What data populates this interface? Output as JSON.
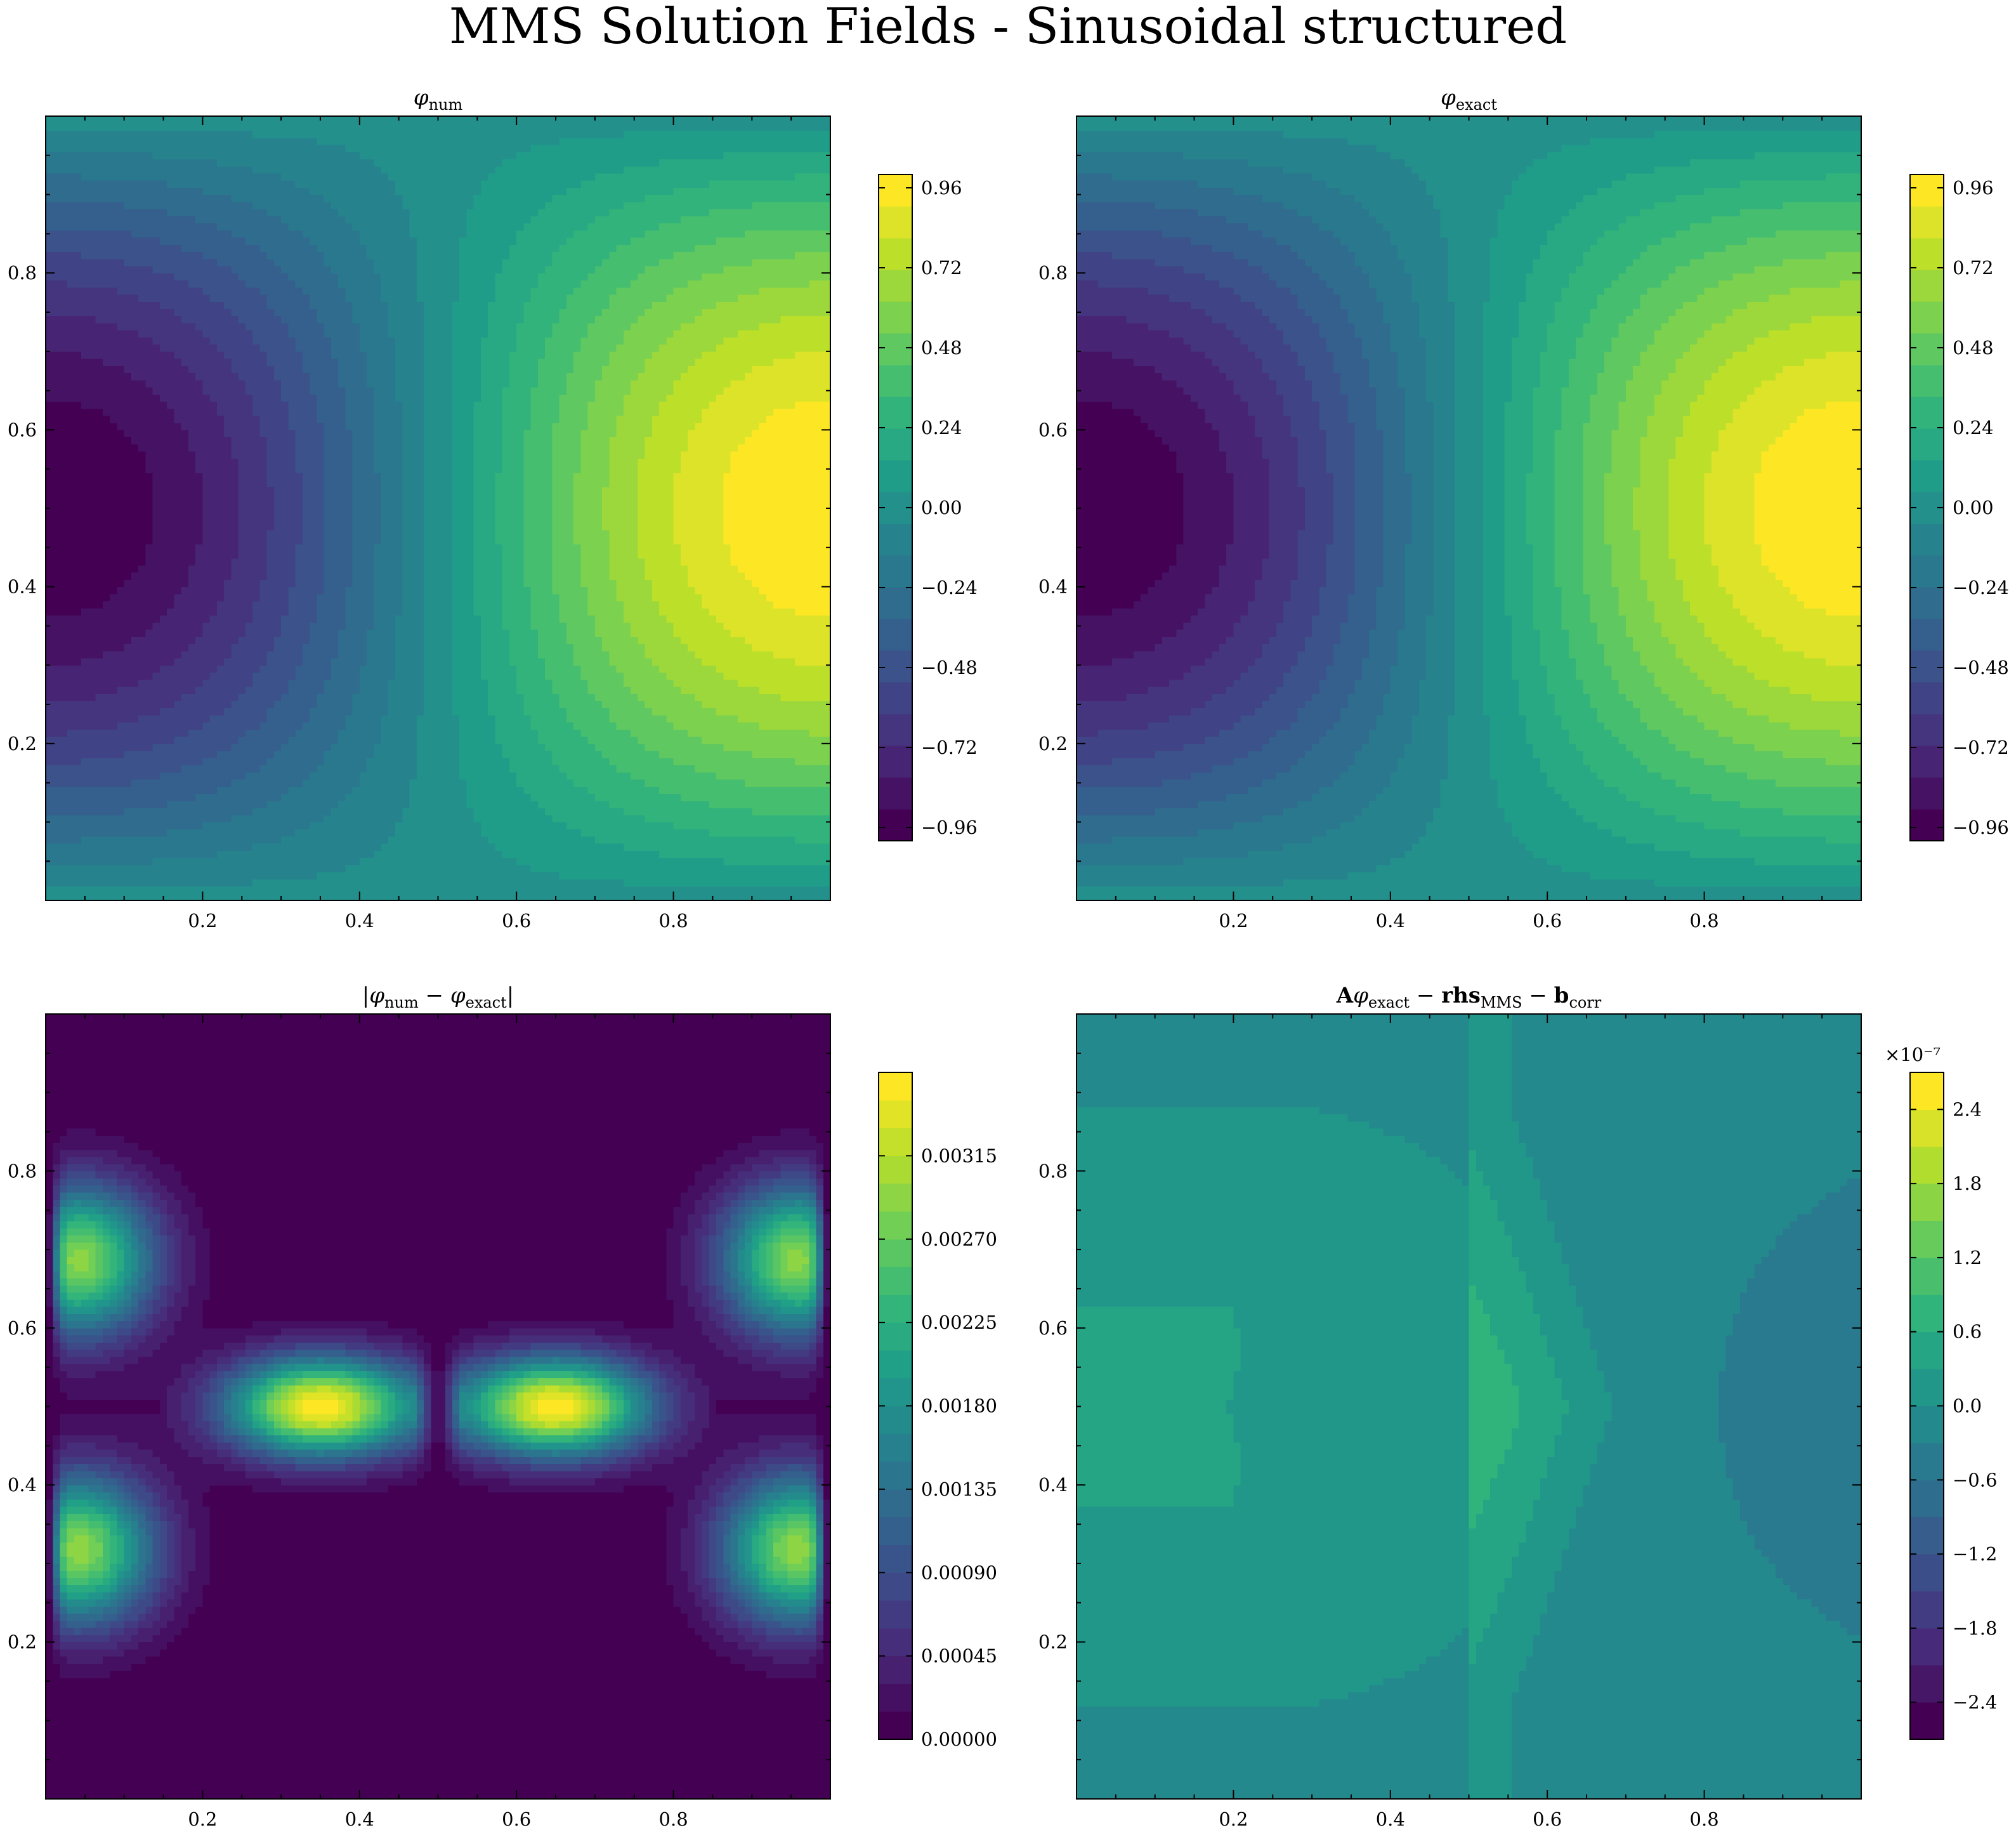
{
  "figure": {
    "suptitle": "MMS Solution Fields - Sinusoidal structured"
  },
  "chart_data": [
    {
      "type": "heatmap",
      "title": "φ_num",
      "title_parts": {
        "base": "φ",
        "sub": "num"
      },
      "field": "phi",
      "xlim": [
        0,
        1
      ],
      "ylim": [
        0,
        1
      ],
      "xticks": [
        "0.2",
        "0.4",
        "0.6",
        "0.8"
      ],
      "yticks": [
        "0.2",
        "0.4",
        "0.6",
        "0.8"
      ],
      "colormap": "viridis",
      "levels": 21,
      "vmin": -1.0,
      "vmax": 1.0,
      "colorbar_ticks": [
        "−0.96",
        "−0.72",
        "−0.48",
        "−0.24",
        "0.00",
        "0.24",
        "0.48",
        "0.72",
        "0.96"
      ],
      "colorbar_values": [
        -0.96,
        -0.72,
        -0.48,
        -0.24,
        0.0,
        0.24,
        0.48,
        0.72,
        0.96
      ],
      "colorbar_exponent": ""
    },
    {
      "type": "heatmap",
      "title": "φ_exact",
      "title_parts": {
        "base": "φ",
        "sub": "exact"
      },
      "field": "phi",
      "xlim": [
        0,
        1
      ],
      "ylim": [
        0,
        1
      ],
      "xticks": [
        "0.2",
        "0.4",
        "0.6",
        "0.8"
      ],
      "yticks": [
        "0.2",
        "0.4",
        "0.6",
        "0.8"
      ],
      "colormap": "viridis",
      "levels": 21,
      "vmin": -1.0,
      "vmax": 1.0,
      "colorbar_ticks": [
        "−0.96",
        "−0.72",
        "−0.48",
        "−0.24",
        "0.00",
        "0.24",
        "0.48",
        "0.72",
        "0.96"
      ],
      "colorbar_values": [
        -0.96,
        -0.72,
        -0.48,
        -0.24,
        0.0,
        0.24,
        0.48,
        0.72,
        0.96
      ],
      "colorbar_exponent": ""
    },
    {
      "type": "heatmap",
      "title": "|φ_num − φ_exact|",
      "title_parts": {
        "base": "|φ",
        "sub": "num",
        "mid": " − φ",
        "sub2": "exact",
        "end": "|"
      },
      "field": "error",
      "xlim": [
        0,
        1
      ],
      "ylim": [
        0,
        1
      ],
      "xticks": [
        "0.2",
        "0.4",
        "0.6",
        "0.8"
      ],
      "yticks": [
        "0.2",
        "0.4",
        "0.6",
        "0.8"
      ],
      "colormap": "viridis",
      "levels": 24,
      "vmin": 0.0,
      "vmax": 0.0036,
      "colorbar_ticks": [
        "0.00000",
        "0.00045",
        "0.00090",
        "0.00135",
        "0.00180",
        "0.00225",
        "0.00270",
        "0.00315"
      ],
      "colorbar_values": [
        0.0,
        0.00045,
        0.0009,
        0.00135,
        0.0018,
        0.00225,
        0.0027,
        0.00315
      ],
      "colorbar_exponent": ""
    },
    {
      "type": "heatmap",
      "title": "Aφ_exact − rhs_MMS − b_corr",
      "title_parts": {
        "b1": "A",
        "base": "φ",
        "sub": "exact",
        "mid": " − ",
        "b2": "rhs",
        "sub2": "MMS",
        "mid2": " − ",
        "b3": "b",
        "sub3": "corr"
      },
      "field": "residual",
      "xlim": [
        0,
        1
      ],
      "ylim": [
        0,
        1
      ],
      "xticks": [
        "0.2",
        "0.4",
        "0.6",
        "0.8"
      ],
      "yticks": [
        "0.2",
        "0.4",
        "0.6",
        "0.8"
      ],
      "colormap": "viridis",
      "levels": 18,
      "vmin": -2.7,
      "vmax": 2.7,
      "colorbar_ticks": [
        "−2.4",
        "−1.8",
        "−1.2",
        "−0.6",
        "0.0",
        "0.6",
        "1.2",
        "1.8",
        "2.4"
      ],
      "colorbar_values": [
        -2.4,
        -1.8,
        -1.2,
        -0.6,
        0.0,
        0.6,
        1.2,
        1.8,
        2.4
      ],
      "colorbar_exponent": "×10⁻⁷"
    }
  ]
}
